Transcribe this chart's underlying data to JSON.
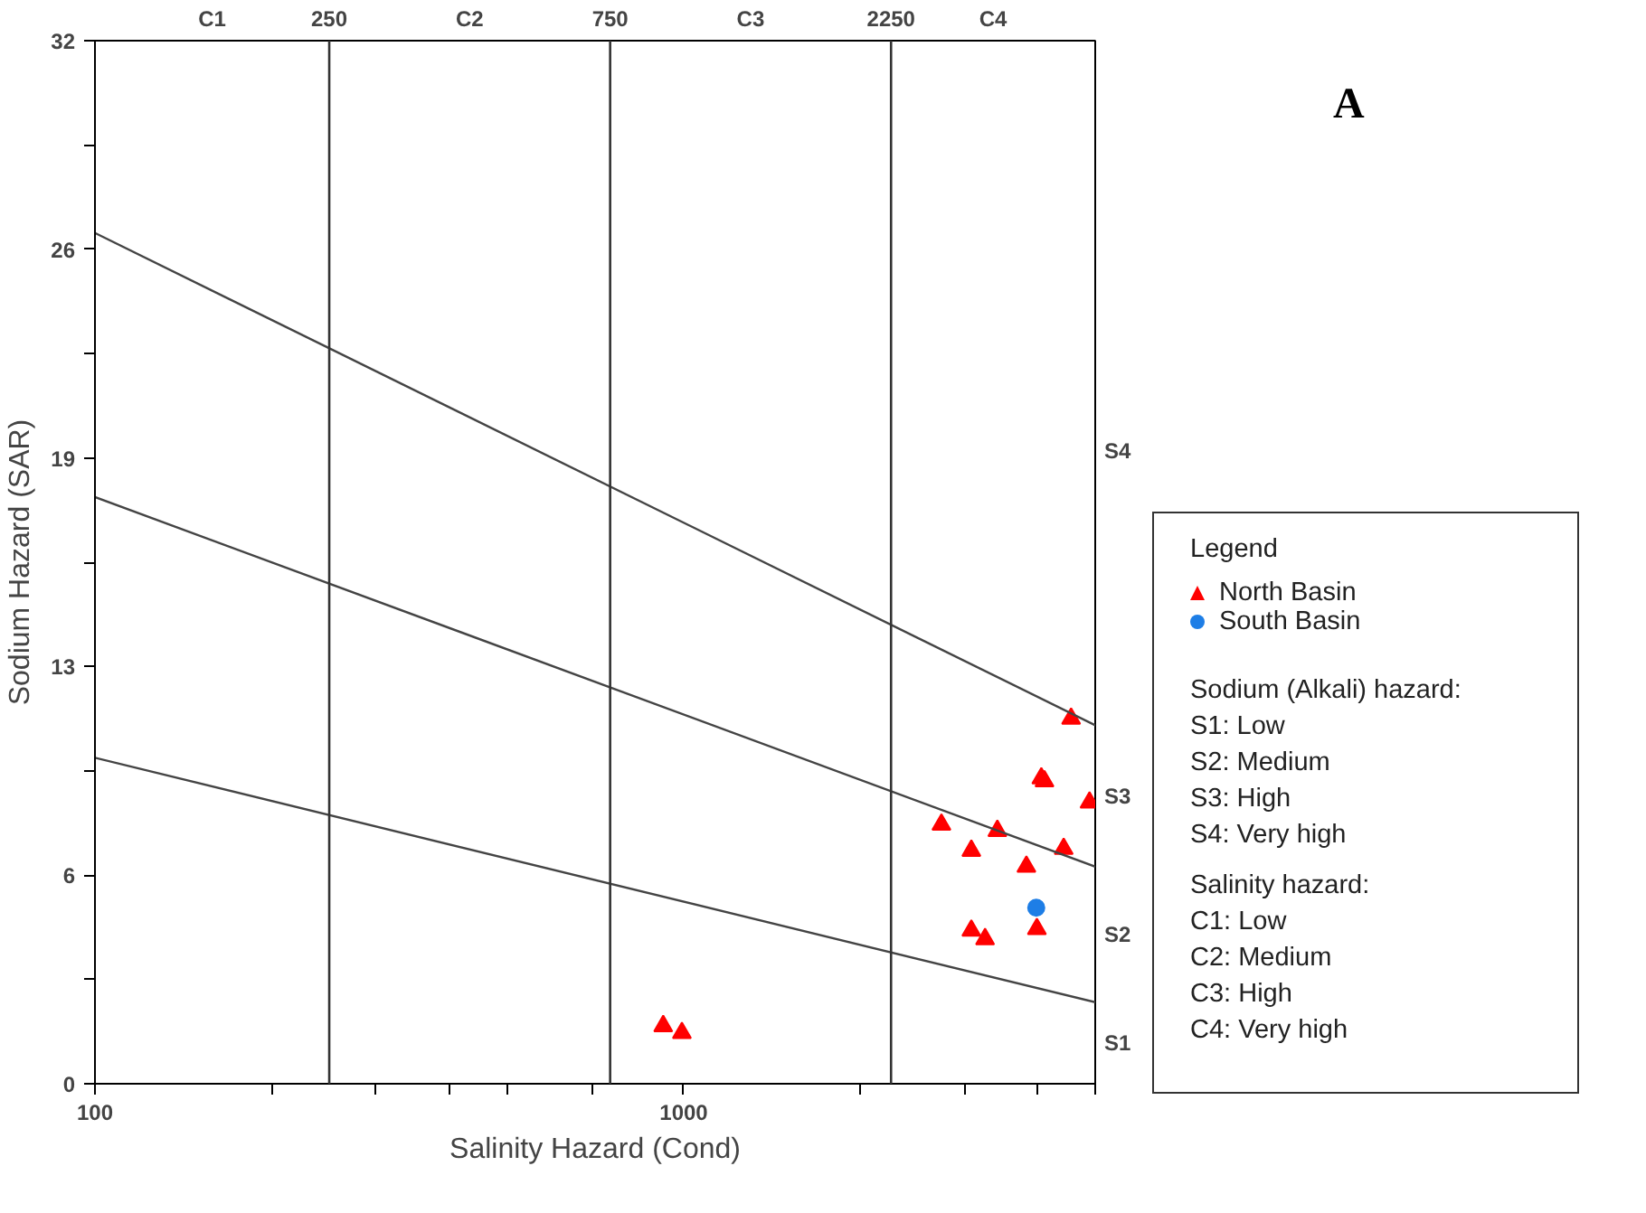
{
  "chart_data": {
    "type": "scatter",
    "title": "A",
    "xlabel": "Salinity Hazard (Cond)",
    "ylabel": "Sodium Hazard (SAR)",
    "log": "x",
    "grid": false,
    "legend": "right",
    "legend_title": "Legend",
    "xlim": [
      100,
      5000
    ],
    "xticks": [
      100,
      {
        "value": 200,
        "label": null
      },
      {
        "value": 300,
        "label": null
      },
      {
        "value": 400,
        "label": null
      },
      {
        "value": 500,
        "label": null
      },
      {
        "value": 700,
        "label": null
      },
      1000,
      {
        "value": 2000,
        "label": null
      },
      {
        "value": 3000,
        "label": null
      },
      {
        "value": 4000,
        "label": null
      },
      {
        "value": 5000,
        "label": null
      }
    ],
    "ylim": [
      0,
      32
    ],
    "yticks": [
      {
        "value": 0,
        "label": "0"
      },
      {
        "value": 3.2,
        "label": null
      },
      {
        "value": 6.4,
        "label": "6"
      },
      {
        "value": 9.6,
        "label": null
      },
      {
        "value": 12.8,
        "label": "13"
      },
      {
        "value": 16,
        "label": null
      },
      {
        "value": 19.2,
        "label": "19"
      },
      {
        "value": 22.4,
        "label": null
      },
      {
        "value": 25.6,
        "label": "26"
      },
      {
        "value": 28.8,
        "label": null
      },
      {
        "value": 32,
        "label": "32"
      }
    ],
    "ref_lines": [
      {
        "axis": "x",
        "value": 250,
        "label": "250",
        "color": "#333333"
      },
      {
        "axis": "x",
        "value": 750,
        "label": "750",
        "color": "#333333"
      },
      {
        "axis": "x",
        "value": 2250,
        "label": "2250",
        "color": "#333333"
      }
    ],
    "series": [
      {
        "name": "North Basin",
        "marker": "triangle",
        "color": "#ff0000",
        "x": [
          4550,
          4050,
          4100,
          4890,
          2740,
          3410,
          3080,
          4420,
          3820,
          3080,
          3250,
          3980,
          923,
          993
        ],
        "values": [
          11.2,
          9.37,
          9.28,
          8.63,
          7.95,
          7.76,
          7.15,
          7.21,
          6.66,
          4.7,
          4.44,
          4.75,
          1.77,
          1.56
        ]
      },
      {
        "name": "South Basin",
        "marker": "circle",
        "color": "#1e7ee6",
        "x": [
          3970
        ],
        "values": [
          5.4
        ]
      },
      {
        "type": "line",
        "color": "#444444",
        "x": [
          100,
          5000
        ],
        "values": [
          26.1,
          11.0
        ]
      },
      {
        "type": "line",
        "color": "#444444",
        "x": [
          100,
          5000
        ],
        "values": [
          18.0,
          6.66
        ]
      },
      {
        "type": "line",
        "color": "#444444",
        "x": [
          100,
          5000
        ],
        "values": [
          10.0,
          2.5
        ]
      }
    ],
    "annotations": [
      "C1",
      "C2",
      "C3",
      "C4",
      "S1",
      "S2",
      "S3",
      "S4",
      "Sodium (Alkali) hazard:",
      "S1: Low",
      "S2: Medium",
      "S3: High",
      "S4: Very high",
      "Salinity hazard:",
      "C1: Low",
      "C2: Medium",
      "C3: High",
      "C4: Very high"
    ]
  }
}
